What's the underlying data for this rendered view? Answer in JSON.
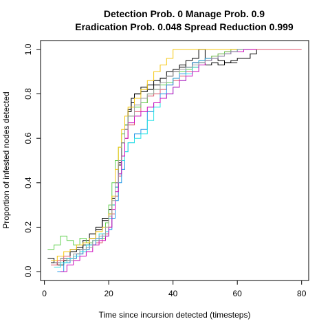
{
  "chart_data": {
    "type": "line",
    "title_line1": "Detection Prob. 0 Manage Prob. 0.9",
    "title_line2": "Eradication Prob. 0.048 Spread Reduction 0.999",
    "xlabel": "Time since incursion detected (timesteps)",
    "ylabel": "Proportion of infested nodes detected",
    "xlim": [
      -1.2,
      82.2
    ],
    "ylim": [
      -0.04,
      1.04
    ],
    "xticks": [
      "0",
      "20",
      "40",
      "60",
      "80"
    ],
    "yticks": [
      "0.0",
      "0.2",
      "0.4",
      "0.6",
      "0.8",
      "1.0"
    ],
    "grid": false,
    "legend": "none",
    "series": [
      {
        "color": "#000000",
        "x": [
          1,
          3,
          5,
          8,
          10,
          12,
          14,
          16,
          18,
          20,
          21,
          22,
          23,
          24,
          25,
          26,
          27,
          28,
          30,
          32,
          34,
          36,
          38,
          40,
          42,
          44,
          46,
          48,
          50,
          52,
          54,
          56,
          58,
          60,
          62,
          64,
          66
        ],
        "y": [
          0.06,
          0.04,
          0.06,
          0.09,
          0.1,
          0.14,
          0.17,
          0.2,
          0.24,
          0.28,
          0.33,
          0.4,
          0.48,
          0.58,
          0.66,
          0.73,
          0.76,
          0.8,
          0.83,
          0.82,
          0.84,
          0.87,
          0.9,
          0.9,
          0.92,
          0.95,
          0.96,
          1.0,
          0.95,
          0.96,
          0.95,
          0.94,
          0.95,
          0.96,
          0.96,
          0.98,
          1.0
        ]
      },
      {
        "color": "#000000",
        "x": [
          2,
          4,
          6,
          8,
          10,
          12,
          14,
          16,
          18,
          20,
          21,
          22,
          23,
          24,
          25,
          26,
          27,
          28,
          30,
          32,
          34,
          36,
          38,
          40,
          42,
          44,
          46,
          48,
          50,
          52,
          54,
          56,
          58,
          60
        ],
        "y": [
          0.04,
          0.03,
          0.05,
          0.1,
          0.11,
          0.12,
          0.15,
          0.19,
          0.23,
          0.26,
          0.3,
          0.38,
          0.49,
          0.58,
          0.64,
          0.72,
          0.78,
          0.8,
          0.81,
          0.84,
          0.86,
          0.87,
          0.88,
          0.91,
          0.93,
          0.92,
          0.94,
          0.94,
          0.93,
          0.94,
          0.93,
          0.94,
          0.94,
          0.94
        ]
      },
      {
        "color": "#DF536B",
        "x": [
          2,
          4,
          6,
          8,
          10,
          12,
          14,
          16,
          18,
          20,
          21,
          22,
          23,
          24,
          25,
          26,
          28,
          30,
          32,
          34,
          36,
          38,
          40,
          42,
          44,
          46,
          48,
          50,
          52,
          54,
          56,
          58,
          60,
          62,
          64,
          66,
          68,
          70,
          72,
          74,
          76,
          78,
          80
        ],
        "y": [
          0.03,
          0.05,
          0.07,
          0.06,
          0.08,
          0.1,
          0.12,
          0.13,
          0.17,
          0.2,
          0.26,
          0.34,
          0.43,
          0.52,
          0.6,
          0.66,
          0.72,
          0.76,
          0.79,
          0.8,
          0.82,
          0.84,
          0.86,
          0.88,
          0.9,
          0.92,
          0.94,
          0.96,
          0.97,
          0.98,
          0.99,
          1.0,
          1.0,
          1.0,
          1.0,
          1.0,
          1.0,
          1.0,
          1.0,
          1.0,
          1.0,
          1.0,
          1.0
        ]
      },
      {
        "color": "#61D04F",
        "x": [
          1,
          3,
          5,
          7,
          9,
          11,
          13,
          15,
          17,
          19,
          20,
          21,
          22,
          23,
          24,
          25,
          26,
          28,
          30,
          32,
          34,
          36,
          38,
          40,
          42,
          44,
          46,
          48,
          50,
          52,
          54,
          56,
          58,
          60,
          62
        ],
        "y": [
          0.1,
          0.12,
          0.16,
          0.14,
          0.12,
          0.15,
          0.13,
          0.14,
          0.15,
          0.22,
          0.3,
          0.4,
          0.5,
          0.56,
          0.62,
          0.66,
          0.7,
          0.74,
          0.76,
          0.8,
          0.82,
          0.84,
          0.85,
          0.87,
          0.9,
          0.91,
          0.92,
          0.95,
          0.96,
          0.97,
          0.98,
          0.99,
          1.0,
          1.0,
          1.0
        ]
      },
      {
        "color": "#2297E6",
        "x": [
          4,
          6,
          8,
          10,
          12,
          14,
          16,
          18,
          20,
          21,
          22,
          23,
          24,
          25,
          26,
          28,
          30,
          32,
          34,
          36,
          38,
          40,
          42,
          44,
          46,
          48,
          50,
          52,
          54,
          56,
          58,
          60
        ],
        "y": [
          0.0,
          0.04,
          0.06,
          0.08,
          0.1,
          0.12,
          0.15,
          0.16,
          0.19,
          0.24,
          0.32,
          0.4,
          0.46,
          0.54,
          0.58,
          0.62,
          0.64,
          0.72,
          0.76,
          0.8,
          0.84,
          0.87,
          0.89,
          0.92,
          0.94,
          0.95,
          0.96,
          0.96,
          0.97,
          0.98,
          0.99,
          1.0
        ]
      },
      {
        "color": "#28E2E5",
        "x": [
          3,
          5,
          7,
          9,
          11,
          13,
          15,
          17,
          19,
          20,
          21,
          22,
          23,
          24,
          25,
          26,
          28,
          30,
          32,
          34,
          36,
          38,
          40,
          42,
          44,
          46,
          48,
          50,
          52,
          54,
          56,
          58,
          60,
          62,
          64
        ],
        "y": [
          0.02,
          0.04,
          0.06,
          0.07,
          0.09,
          0.12,
          0.14,
          0.17,
          0.18,
          0.24,
          0.3,
          0.38,
          0.44,
          0.5,
          0.54,
          0.58,
          0.6,
          0.62,
          0.68,
          0.74,
          0.78,
          0.8,
          0.83,
          0.86,
          0.89,
          0.92,
          0.94,
          0.95,
          0.96,
          0.97,
          0.98,
          0.99,
          1.0,
          1.0,
          1.0
        ]
      },
      {
        "color": "#CD0BBC",
        "x": [
          5,
          7,
          9,
          11,
          13,
          15,
          17,
          19,
          20,
          21,
          22,
          23,
          24,
          25,
          26,
          28,
          30,
          32,
          34,
          36,
          38,
          40,
          42,
          44,
          46,
          48,
          50,
          52,
          54,
          56,
          58,
          60,
          62,
          64,
          66
        ],
        "y": [
          0.0,
          0.03,
          0.05,
          0.07,
          0.09,
          0.12,
          0.14,
          0.16,
          0.2,
          0.28,
          0.36,
          0.44,
          0.52,
          0.6,
          0.67,
          0.7,
          0.72,
          0.74,
          0.76,
          0.78,
          0.8,
          0.83,
          0.86,
          0.88,
          0.9,
          0.93,
          0.95,
          0.96,
          0.97,
          0.98,
          0.99,
          0.99,
          1.0,
          1.0,
          1.0
        ]
      },
      {
        "color": "#F5C710",
        "x": [
          2,
          4,
          6,
          8,
          10,
          12,
          14,
          16,
          18,
          20,
          21,
          22,
          23,
          24,
          25,
          26,
          28,
          30,
          32,
          34,
          36,
          38,
          40,
          42,
          44,
          46,
          48,
          50,
          52,
          54,
          56,
          58,
          60
        ],
        "y": [
          0.05,
          0.07,
          0.09,
          0.1,
          0.12,
          0.13,
          0.15,
          0.18,
          0.2,
          0.26,
          0.34,
          0.46,
          0.56,
          0.64,
          0.7,
          0.74,
          0.78,
          0.82,
          0.86,
          0.9,
          0.93,
          0.96,
          1.0,
          1.0,
          1.0,
          1.0,
          1.0,
          1.0,
          1.0,
          1.0,
          1.0,
          1.0,
          1.0
        ]
      },
      {
        "color": "#9E9E9E",
        "x": [
          3,
          5,
          7,
          9,
          11,
          13,
          15,
          17,
          19,
          20,
          21,
          22,
          23,
          24,
          25,
          26,
          28,
          30,
          32,
          34,
          36,
          38,
          40,
          42,
          44,
          46,
          48,
          50,
          52,
          54,
          56,
          58,
          60,
          62
        ],
        "y": [
          0.04,
          0.06,
          0.05,
          0.08,
          0.1,
          0.11,
          0.14,
          0.16,
          0.2,
          0.25,
          0.32,
          0.4,
          0.5,
          0.58,
          0.64,
          0.7,
          0.75,
          0.78,
          0.8,
          0.82,
          0.85,
          0.88,
          0.9,
          0.91,
          0.92,
          0.93,
          0.94,
          0.95,
          0.96,
          0.97,
          0.98,
          0.99,
          1.0,
          1.0
        ]
      }
    ]
  }
}
